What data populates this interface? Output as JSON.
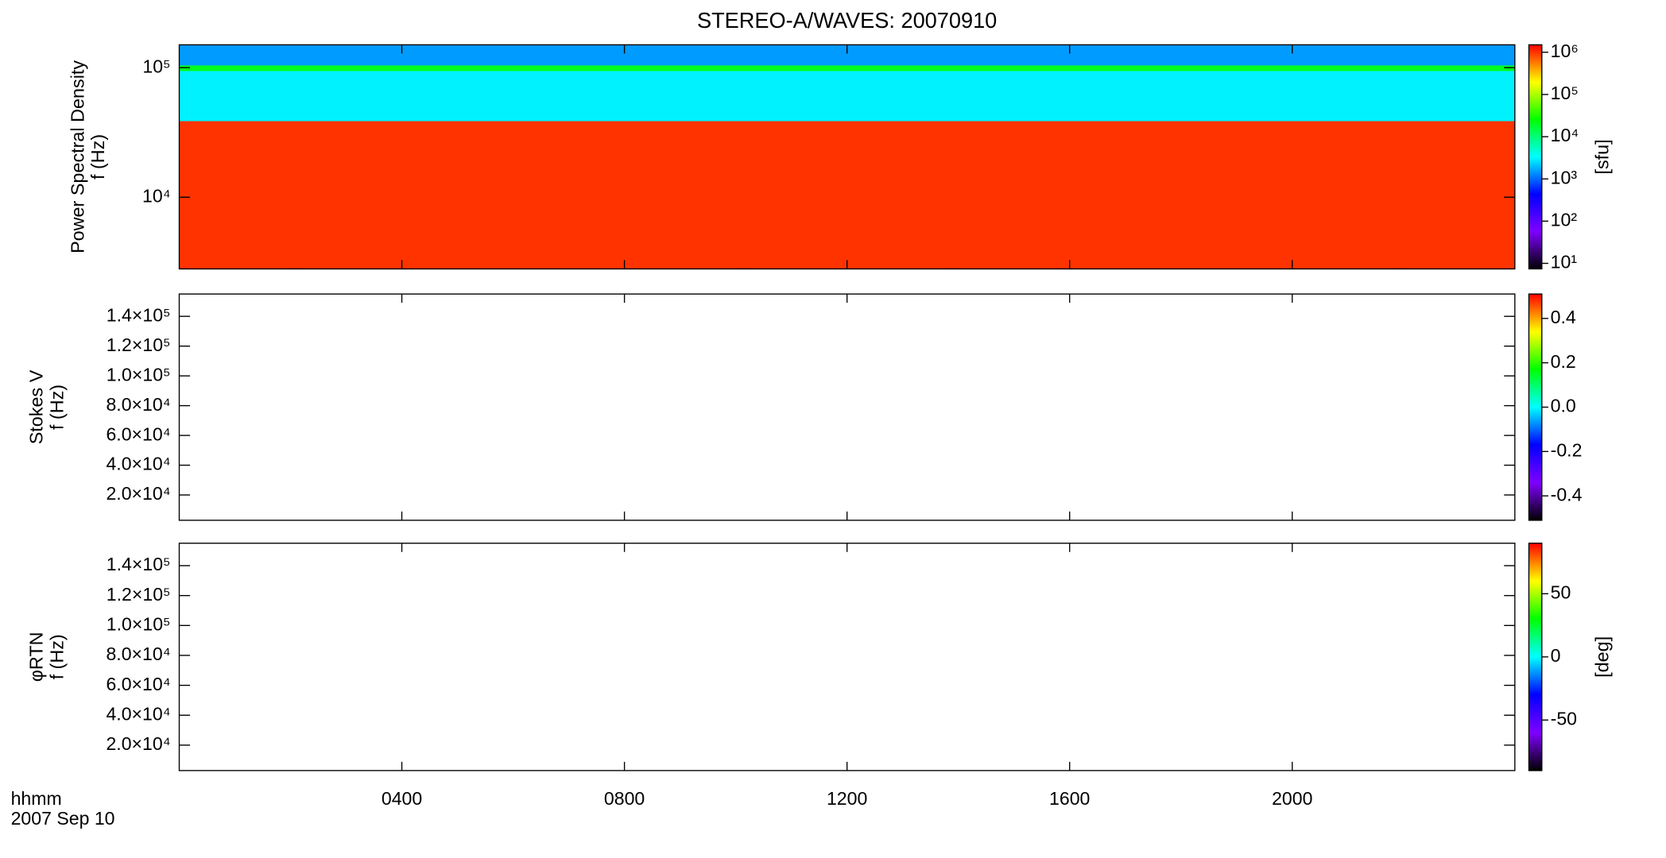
{
  "chart_data": [
    {
      "type": "heatmap",
      "title": "STEREO-A/WAVES: 20070910",
      "ylabel": [
        "Power Spectral Density",
        "f (Hz)"
      ],
      "xlim": [
        0,
        24
      ],
      "xticks": [
        4,
        8,
        12,
        16,
        20
      ],
      "ylim": [
        2800,
        150000
      ],
      "ylog": true,
      "yticks": [
        {
          "value": 10000,
          "label": "10⁴"
        },
        {
          "value": 100000,
          "label": "10⁵"
        }
      ],
      "x_edges": [
        0,
        2,
        4,
        6,
        8,
        10,
        12,
        14,
        16,
        18,
        20,
        22,
        24
      ],
      "y_edges": [
        2800,
        39000,
        95000,
        105000,
        150000
      ],
      "z": [
        [
          1000000,
          1000000,
          1000000,
          1000000,
          1000000,
          1000000,
          1000000,
          1000000,
          1000000,
          1000000,
          1000000,
          1000000
        ],
        [
          3000,
          3000,
          3000,
          3000,
          3000,
          3000,
          3000,
          3000,
          3000,
          3000,
          3000,
          3000
        ],
        [
          20000,
          20000,
          20000,
          20000,
          20000,
          20000,
          20000,
          20000,
          20000,
          20000,
          20000,
          20000
        ],
        [
          1500,
          1500,
          1500,
          1500,
          1500,
          1500,
          1500,
          1500,
          1500,
          1500,
          1500,
          1500
        ]
      ],
      "colorscale": [
        "#000000",
        "#7f00ff",
        "#0000ff",
        "#00ffff",
        "#00ff00",
        "#ffff00",
        "#ff0000"
      ],
      "colorbar": {
        "lim": [
          7.4,
          1500000
        ],
        "log": true,
        "label": "[sfu]",
        "ticks": [
          {
            "value": 10,
            "label": "10¹"
          },
          {
            "value": 100,
            "label": "10²"
          },
          {
            "value": 1000,
            "label": "10³"
          },
          {
            "value": 10000,
            "label": "10⁴"
          },
          {
            "value": 100000,
            "label": "10⁵"
          },
          {
            "value": 1000000,
            "label": "10⁶"
          }
        ]
      }
    },
    {
      "type": "heatmap",
      "ylabel": [
        "Stokes V",
        "f (Hz)"
      ],
      "xlim": [
        0,
        24
      ],
      "xticks": [
        4,
        8,
        12,
        16,
        20
      ],
      "ylim": [
        3000,
        155000
      ],
      "ylog": false,
      "yticks": [
        {
          "value": 20000,
          "label": "2.0×10⁴"
        },
        {
          "value": 40000,
          "label": "4.0×10⁴"
        },
        {
          "value": 60000,
          "label": "6.0×10⁴"
        },
        {
          "value": 80000,
          "label": "8.0×10⁴"
        },
        {
          "value": 100000,
          "label": "1.0×10⁵"
        },
        {
          "value": 120000,
          "label": "1.2×10⁵"
        },
        {
          "value": 140000,
          "label": "1.4×10⁵"
        }
      ],
      "colorscale": [
        "#000000",
        "#7f00ff",
        "#0000ff",
        "#00ffff",
        "#00ff00",
        "#ffff00",
        "#ff0000"
      ],
      "colorbar": {
        "lim": [
          -0.51,
          0.51
        ],
        "log": false,
        "ticks": [
          -0.4,
          -0.2,
          {
            "value": 0,
            "label": "0.0"
          },
          0.2,
          0.4
        ]
      }
    },
    {
      "type": "heatmap",
      "ylabel": [
        "φRTN",
        "f (Hz)"
      ],
      "xlabel": [
        "hhmm",
        "2007 Sep 10"
      ],
      "xlim": [
        0,
        24
      ],
      "xticks": [
        {
          "value": 4,
          "label": "0400"
        },
        {
          "value": 8,
          "label": "0800"
        },
        {
          "value": 12,
          "label": "1200"
        },
        {
          "value": 16,
          "label": "1600"
        },
        {
          "value": 20,
          "label": "2000"
        }
      ],
      "ylim": [
        3000,
        155000
      ],
      "ylog": false,
      "yticks": [
        {
          "value": 20000,
          "label": "2.0×10⁴"
        },
        {
          "value": 40000,
          "label": "4.0×10⁴"
        },
        {
          "value": 60000,
          "label": "6.0×10⁴"
        },
        {
          "value": 80000,
          "label": "8.0×10⁴"
        },
        {
          "value": 100000,
          "label": "1.0×10⁵"
        },
        {
          "value": 120000,
          "label": "1.2×10⁵"
        },
        {
          "value": 140000,
          "label": "1.4×10⁵"
        }
      ],
      "colorscale": [
        "#000000",
        "#7f00ff",
        "#0000ff",
        "#00ffff",
        "#00ff00",
        "#ffff00",
        "#ff0000"
      ],
      "colorbar": {
        "lim": [
          -90,
          90
        ],
        "log": false,
        "label": "[deg]",
        "ticks": [
          -50,
          0,
          50
        ]
      }
    }
  ]
}
